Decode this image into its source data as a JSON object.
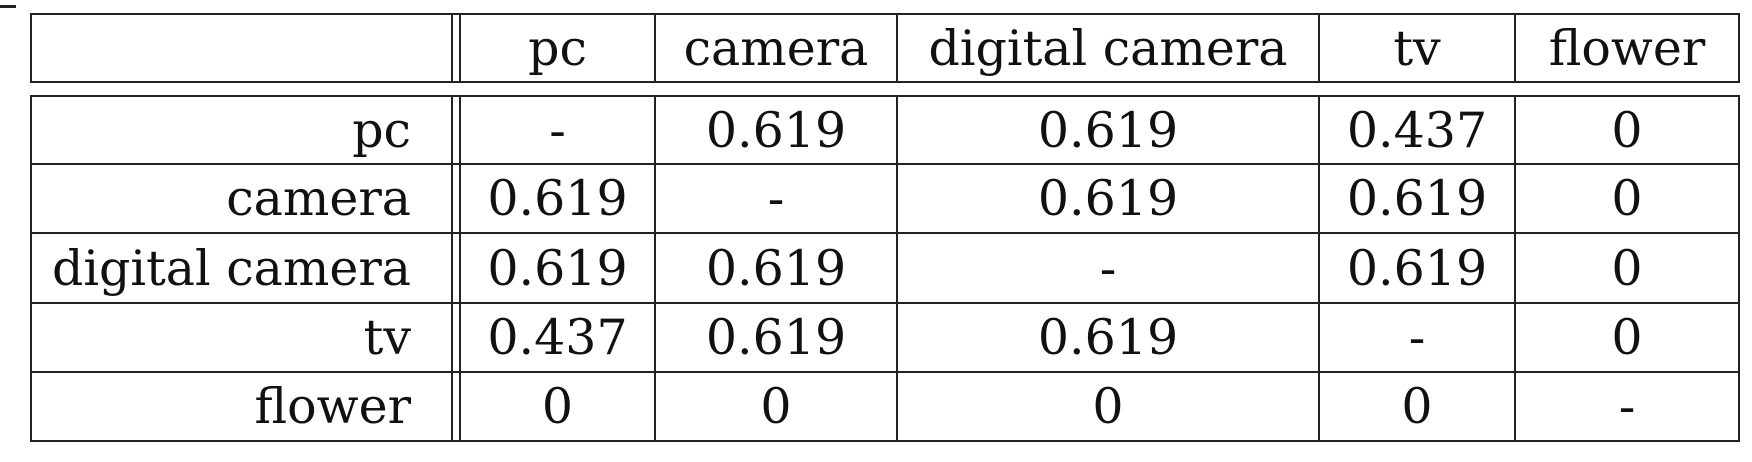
{
  "table": {
    "columns": [
      "pc",
      "camera",
      "digital camera",
      "tv",
      "flower"
    ],
    "rows": [
      {
        "label": "pc",
        "values": [
          "-",
          "0.619",
          "0.619",
          "0.437",
          "0"
        ]
      },
      {
        "label": "camera",
        "values": [
          "0.619",
          "-",
          "0.619",
          "0.619",
          "0"
        ]
      },
      {
        "label": "digital camera",
        "values": [
          "0.619",
          "0.619",
          "-",
          "0.619",
          "0"
        ]
      },
      {
        "label": "tv",
        "values": [
          "0.437",
          "0.619",
          "0.619",
          "-",
          "0"
        ]
      },
      {
        "label": "flower",
        "values": [
          "0",
          "0",
          "0",
          "0",
          "-"
        ]
      }
    ]
  }
}
